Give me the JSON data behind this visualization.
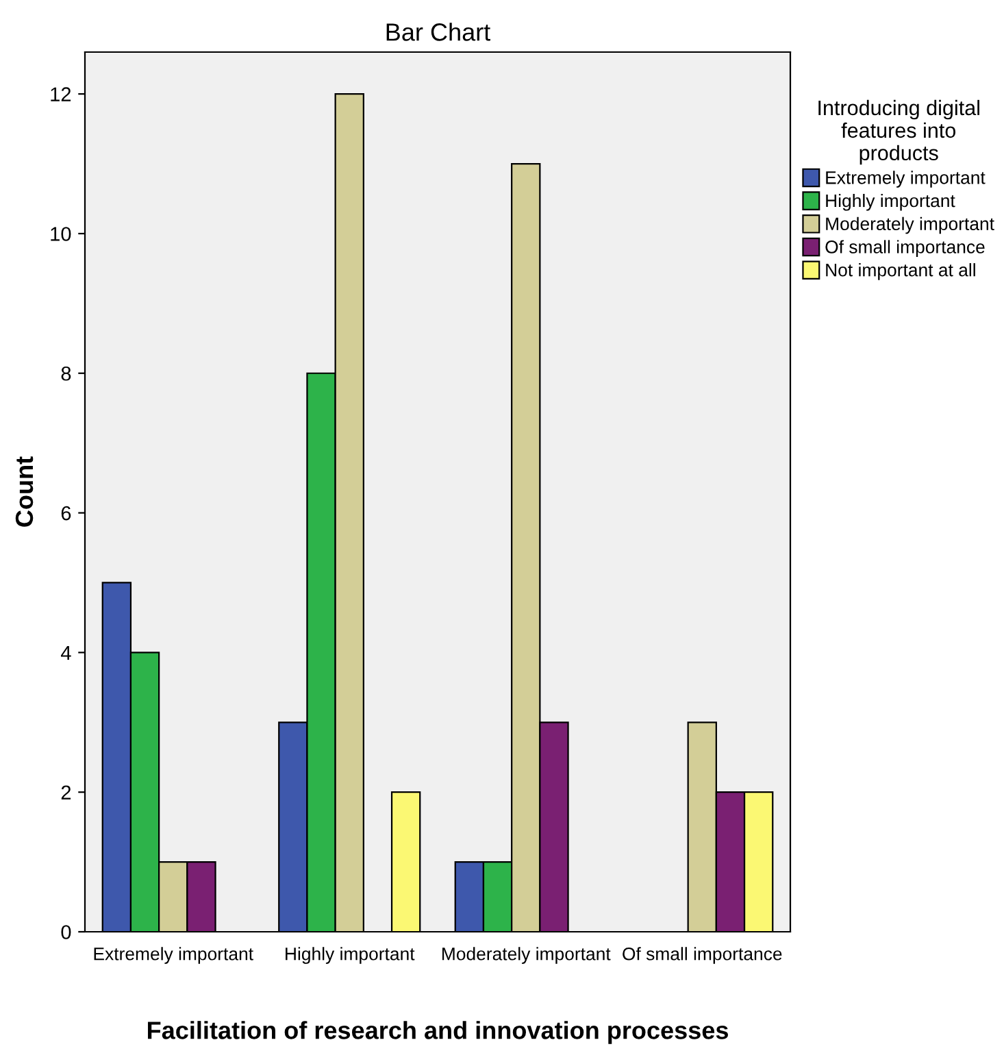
{
  "chart_data": {
    "type": "bar",
    "title": "Bar Chart",
    "xlabel": "Facilitation of research and innovation processes",
    "ylabel": "Count",
    "legend_title": "Introducing digital features into products",
    "categories": [
      "Extremely important",
      "Highly important",
      "Moderately important",
      "Of small importance"
    ],
    "series": [
      {
        "name": "Extremely important",
        "color": "#3e58ac",
        "values": [
          5,
          3,
          1,
          null
        ]
      },
      {
        "name": "Highly important",
        "color": "#2db34a",
        "values": [
          4,
          8,
          1,
          null
        ]
      },
      {
        "name": "Moderately important",
        "color": "#d3ce97",
        "values": [
          1,
          12,
          11,
          3
        ]
      },
      {
        "name": "Of small importance",
        "color": "#7a2072",
        "values": [
          1,
          null,
          3,
          2
        ]
      },
      {
        "name": "Not important at all",
        "color": "#fbf873",
        "values": [
          null,
          2,
          null,
          2
        ]
      }
    ],
    "ylim": [
      0,
      12.6
    ],
    "yticks": [
      0,
      2,
      4,
      6,
      8,
      10,
      12
    ],
    "grid": false,
    "legend": "top right"
  }
}
